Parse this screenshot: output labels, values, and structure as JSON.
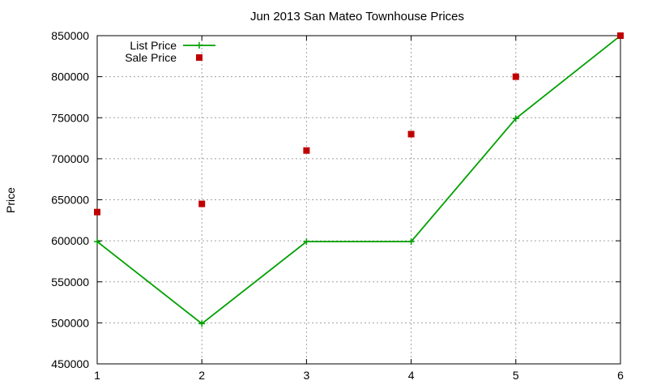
{
  "chart_data": {
    "type": "line",
    "title": "Jun 2013 San Mateo Townhouse Prices",
    "xlabel": "",
    "ylabel": "Price",
    "x": [
      1,
      2,
      3,
      4,
      5,
      6
    ],
    "xlim": [
      1,
      6
    ],
    "ylim": [
      450000,
      850000
    ],
    "xticks": [
      1,
      2,
      3,
      4,
      5,
      6
    ],
    "yticks": [
      450000,
      500000,
      550000,
      600000,
      650000,
      700000,
      750000,
      800000,
      850000
    ],
    "grid": true,
    "legend_position": "top-left",
    "series": [
      {
        "name": "List Price",
        "style": "line+plus",
        "color": "#00a000",
        "values": [
          599000,
          499000,
          599000,
          599000,
          749000,
          850000
        ]
      },
      {
        "name": "Sale Price",
        "style": "square",
        "color": "#c00000",
        "values": [
          635000,
          645000,
          710000,
          730000,
          800000,
          850000
        ]
      }
    ]
  }
}
